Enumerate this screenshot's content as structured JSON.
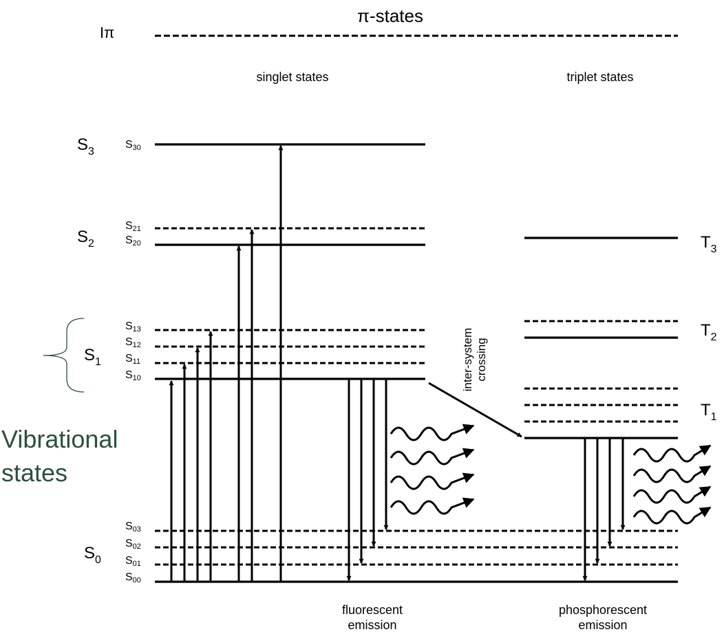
{
  "title": "π-states",
  "ionization_label": "Iπ",
  "headings": {
    "singlet": "singlet states",
    "triplet": "triplet states"
  },
  "annotation": {
    "line1": "Vibrational",
    "line2": "states",
    "color": "#2d4f3f"
  },
  "singlet_levels": [
    {
      "main": "S",
      "main_sub": "3",
      "label": "S",
      "label_sub": "30"
    },
    {
      "main": "S",
      "main_sub": "2",
      "label": "S",
      "label_sub": "21"
    },
    {
      "label": "S",
      "label_sub": "20"
    },
    {
      "main": "S",
      "main_sub": "1",
      "label": "S",
      "label_sub": "13"
    },
    {
      "label": "S",
      "label_sub": "12"
    },
    {
      "label": "S",
      "label_sub": "11"
    },
    {
      "label": "S",
      "label_sub": "10"
    },
    {
      "main": "S",
      "main_sub": "0",
      "label": "S",
      "label_sub": "03"
    },
    {
      "label": "S",
      "label_sub": "02"
    },
    {
      "label": "S",
      "label_sub": "01"
    },
    {
      "label": "S",
      "label_sub": "00"
    }
  ],
  "triplet_levels": [
    {
      "label": "T",
      "label_sub": "3"
    },
    {
      "label": "T",
      "label_sub": "2"
    },
    {
      "label": "T",
      "label_sub": "1"
    }
  ],
  "crossing_label": {
    "line1": "inter-system",
    "line2": "crossing"
  },
  "emission_labels": {
    "fluorescent": {
      "line1": "fluorescent",
      "line2": "emission"
    },
    "phosphorescent": {
      "line1": "phosphorescent",
      "line2": "emission"
    }
  },
  "colors": {
    "lines": "#000000",
    "annotation": "#2d4f3f"
  }
}
